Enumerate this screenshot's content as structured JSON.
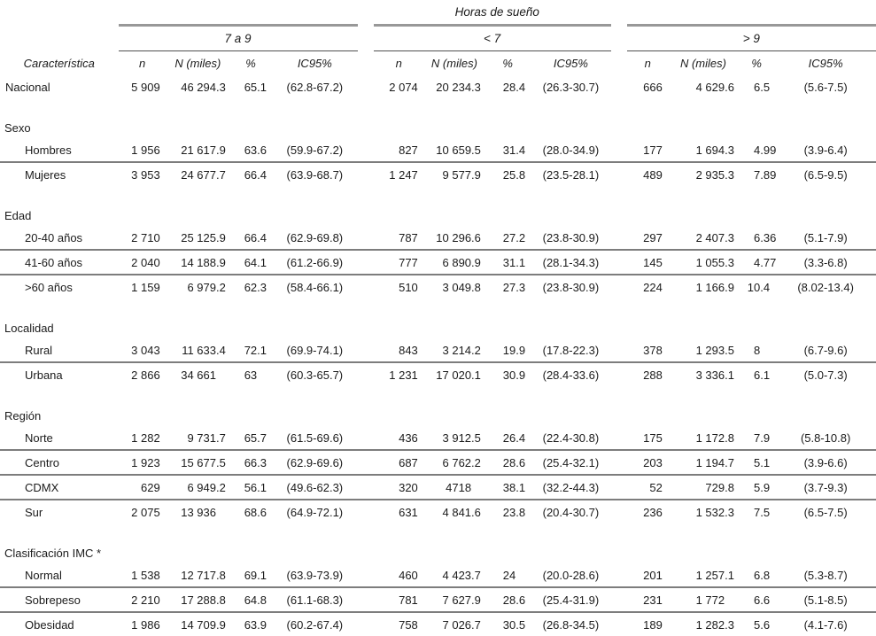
{
  "colors": {
    "text": "#1b1b1b",
    "thick_rule": "#989898",
    "thin_rule": "#4f4f4f",
    "row_separator": "#7d7d7d",
    "background": "#ffffff"
  },
  "table": {
    "title": "Horas de sueño",
    "col_label_header": "Característica",
    "groups": [
      {
        "label": "7 a 9"
      },
      {
        "label": "< 7"
      },
      {
        "label": "> 9"
      }
    ],
    "subheaders": [
      "n",
      "N (miles)",
      "%",
      "IC95%"
    ],
    "rows": [
      {
        "type": "data",
        "indent": false,
        "sep": false,
        "label": "Nacional",
        "cells": [
          "5 909",
          "46 294.3",
          "65.1",
          "(62.8-67.2)",
          "2 074",
          "20 234.3",
          "28.4",
          "(26.3-30.7)",
          "666",
          "4 629.6",
          "6.5",
          "(5.6-7.5)"
        ]
      },
      {
        "type": "section",
        "label": "Sexo"
      },
      {
        "type": "data",
        "indent": true,
        "sep": false,
        "label": "Hombres",
        "cells": [
          "1 956",
          "21 617.9",
          "63.6",
          "(59.9-67.2)",
          "827",
          "10 659.5",
          "31.4",
          "(28.0-34.9)",
          "177",
          "1 694.3",
          "4.99",
          "(3.9-6.4)"
        ]
      },
      {
        "type": "data",
        "indent": true,
        "sep": true,
        "label": "Mujeres",
        "cells": [
          "3 953",
          "24 677.7",
          "66.4",
          "(63.9-68.7)",
          "1 247",
          "9 577.9",
          "25.8",
          "(23.5-28.1)",
          "489",
          "2 935.3",
          "7.89",
          "(6.5-9.5)"
        ]
      },
      {
        "type": "section",
        "label": "Edad"
      },
      {
        "type": "data",
        "indent": true,
        "sep": false,
        "label": "20-40 años",
        "cells": [
          "2 710",
          "25 125.9",
          "66.4",
          "(62.9-69.8)",
          "787",
          "10 296.6",
          "27.2",
          "(23.8-30.9)",
          "297",
          "2 407.3",
          "6.36",
          "(5.1-7.9)"
        ]
      },
      {
        "type": "data",
        "indent": true,
        "sep": true,
        "label": "41-60 años",
        "cells": [
          "2 040",
          "14 188.9",
          "64.1",
          "(61.2-66.9)",
          "777",
          "6 890.9",
          "31.1",
          "(28.1-34.3)",
          "145",
          "1 055.3",
          "4.77",
          "(3.3-6.8)"
        ]
      },
      {
        "type": "data",
        "indent": true,
        "sep": true,
        "label": ">60 años",
        "cells": [
          "1 159",
          "6 979.2",
          "62.3",
          "(58.4-66.1)",
          "510",
          "3 049.8",
          "27.3",
          "(23.8-30.9)",
          "224",
          "1 166.9",
          "10.4",
          "(8.02-13.4)"
        ]
      },
      {
        "type": "section",
        "label": "Localidad"
      },
      {
        "type": "data",
        "indent": true,
        "sep": false,
        "label": "Rural",
        "cells": [
          "3 043",
          "11 633.4",
          "72.1",
          "(69.9-74.1)",
          "843",
          "3 214.2",
          "19.9",
          "(17.8-22.3)",
          "378",
          "1 293.5",
          "8",
          "(6.7-9.6)"
        ]
      },
      {
        "type": "data",
        "indent": true,
        "sep": true,
        "label": "Urbana",
        "cells": [
          "2 866",
          "34 661",
          "63",
          "(60.3-65.7)",
          "1 231",
          "17 020.1",
          "30.9",
          "(28.4-33.6)",
          "288",
          "3 336.1",
          "6.1",
          "(5.0-7.3)"
        ]
      },
      {
        "type": "section",
        "label": "Región"
      },
      {
        "type": "data",
        "indent": true,
        "sep": false,
        "label": "Norte",
        "cells": [
          "1 282",
          "9 731.7",
          "65.7",
          "(61.5-69.6)",
          "436",
          "3 912.5",
          "26.4",
          "(22.4-30.8)",
          "175",
          "1 172.8",
          "7.9",
          "(5.8-10.8)"
        ]
      },
      {
        "type": "data",
        "indent": true,
        "sep": true,
        "label": "Centro",
        "cells": [
          "1 923",
          "15 677.5",
          "66.3",
          "(62.9-69.6)",
          "687",
          "6 762.2",
          "28.6",
          "(25.4-32.1)",
          "203",
          "1 194.7",
          "5.1",
          "(3.9-6.6)"
        ]
      },
      {
        "type": "data",
        "indent": true,
        "sep": true,
        "label": "CDMX",
        "cells": [
          "629",
          "6 949.2",
          "56.1",
          "(49.6-62.3)",
          "320",
          "4718",
          "38.1",
          "(32.2-44.3)",
          "52",
          "729.8",
          "5.9",
          "(3.7-9.3)"
        ]
      },
      {
        "type": "data",
        "indent": true,
        "sep": true,
        "label": "Sur",
        "cells": [
          "2 075",
          "13 936",
          "68.6",
          "(64.9-72.1)",
          "631",
          "4 841.6",
          "23.8",
          "(20.4-30.7)",
          "236",
          "1 532.3",
          "7.5",
          "(6.5-7.5)"
        ]
      },
      {
        "type": "section",
        "label": "Clasificación IMC *"
      },
      {
        "type": "data",
        "indent": true,
        "sep": false,
        "label": "Normal",
        "cells": [
          "1 538",
          "12 717.8",
          "69.1",
          "(63.9-73.9)",
          "460",
          "4 423.7",
          "24",
          "(20.0-28.6)",
          "201",
          "1 257.1",
          "6.8",
          "(5.3-8.7)"
        ]
      },
      {
        "type": "data",
        "indent": true,
        "sep": true,
        "label": "Sobrepeso",
        "cells": [
          "2 210",
          "17 288.8",
          "64.8",
          "(61.1-68.3)",
          "781",
          "7 627.9",
          "28.6",
          "(25.4-31.9)",
          "231",
          "1 772",
          "6.6",
          "(5.1-8.5)"
        ]
      },
      {
        "type": "data",
        "indent": true,
        "sep": true,
        "label": "Obesidad",
        "cells": [
          "1 986",
          "14 709.9",
          "63.9",
          "(60.2-67.4)",
          "758",
          "7 026.7",
          "30.5",
          "(26.8-34.5)",
          "189",
          "1 282.3",
          "5.6",
          "(4.1-7.6)"
        ]
      }
    ]
  }
}
